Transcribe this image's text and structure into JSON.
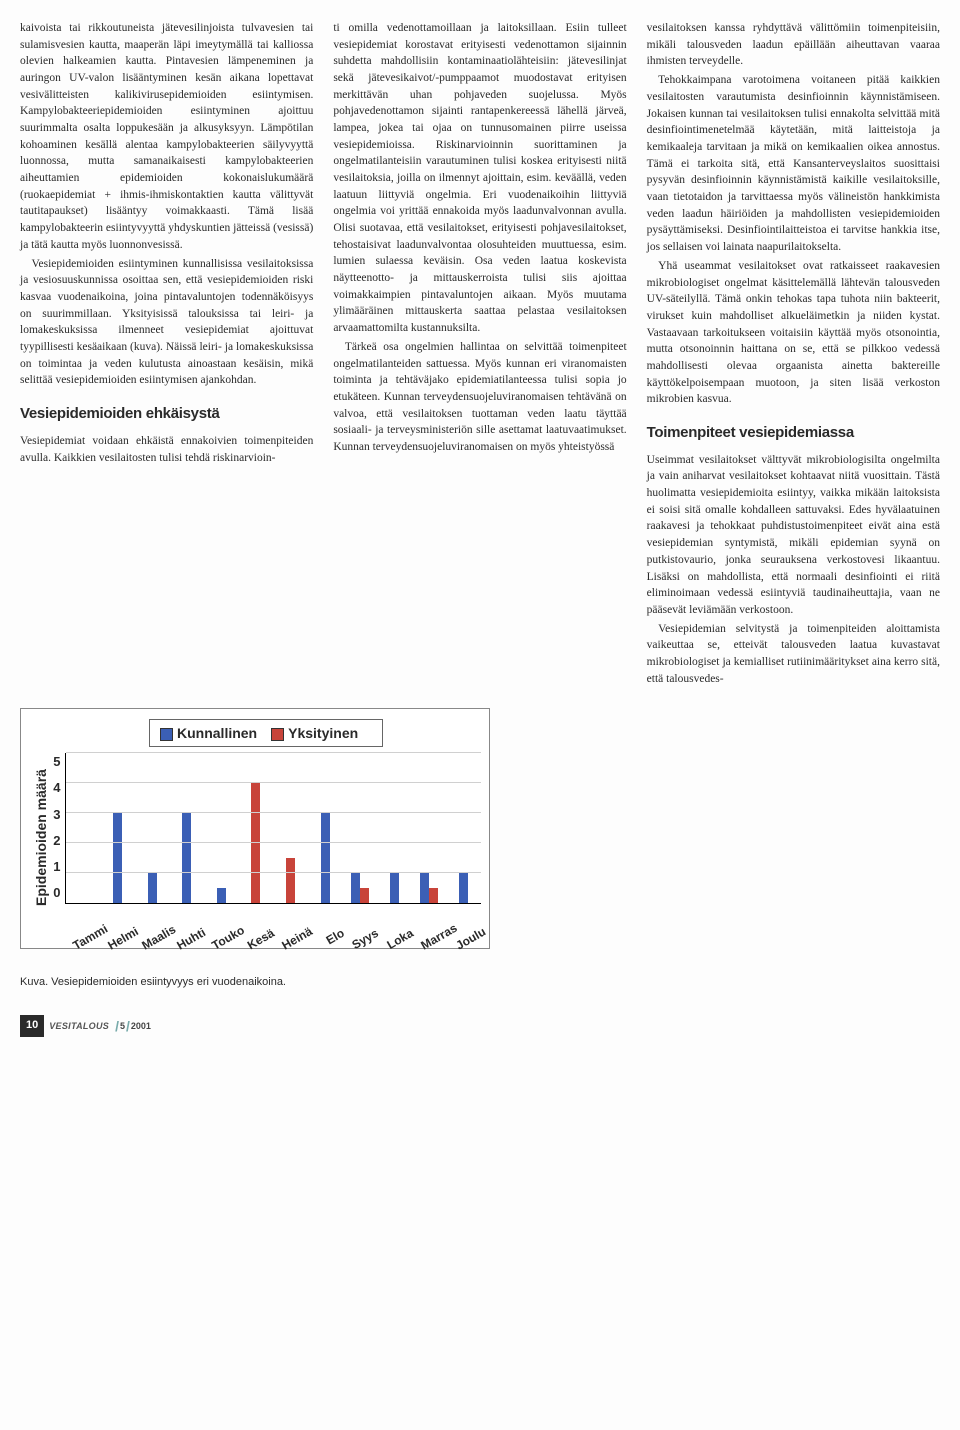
{
  "col1": {
    "p1": "kaivoista tai rikkoutuneista jätevesilinjoista tulvavesien tai sulamisvesien kautta, maaperän läpi imeytymällä tai kalliossa olevien halkeamien kautta. Pintavesien lämpeneminen ja auringon UV-valon lisääntyminen kesän aikana lopettavat vesivälitteisten kalikivirusepidemioiden esiintymisen. Kampylobakteeriepidemioiden esiintyminen ajoittuu suurimmalta osalta loppukesään ja alkusyksyyn. Lämpötilan kohoaminen kesällä alentaa kampylobakteerien säilyvyyttä luonnossa, mutta samanaikaisesti kampylobakteerien aiheuttamien epidemioiden kokonaislukumäärä (ruokaepidemiat + ihmis-ihmiskontaktien kautta välittyvät tautitapaukset) lisääntyy voimakkaasti. Tämä lisää kampylobakteerin esiintyvyyttä yhdyskuntien jätteissä (vesissä) ja tätä kautta myös luonnonvesissä.",
    "p2": "Vesiepidemioiden esiintyminen kunnallisissa vesilaitoksissa ja vesiosuuskunnissa osoittaa sen, että vesiepidemioiden riski kasvaa vuodenaikoina, joina pintavaluntojen todennäköisyys on suurimmillaan. Yksityisissä talouksissa tai leiri- ja lomakeskuksissa ilmenneet vesiepidemiat ajoittuvat tyypillisesti kesäaikaan (kuva). Näissä leiri- ja lomakeskuksissa on toimintaa ja veden kulutusta ainoastaan kesäisin, mikä selittää vesiepidemioiden esiintymisen ajankohdan.",
    "h1": "Vesiepidemioiden ehkäisystä",
    "p3": "Vesiepidemiat voidaan ehkäistä ennakoivien toimenpiteiden avulla. Kaikkien vesilaitosten tulisi tehdä riskinarvioin-"
  },
  "col2": {
    "p1": "ti omilla vedenottamoillaan ja laitoksillaan. Esiin tulleet vesiepidemiat korostavat erityisesti vedenottamon sijainnin suhdetta mahdollisiin kontaminaatiolähteisiin: jätevesilinjat sekä jätevesikaivot/-pumppaamot muodostavat erityisen merkittävän uhan pohjaveden suojelussa. Myös pohjavedenottamon sijainti rantapenkereessä lähellä järveä, lampea, jokea tai ojaa on tunnusomainen piirre useissa vesiepidemioissa. Riskinarvioinnin suorittaminen ja ongelmatilanteisiin varautuminen tulisi koskea erityisesti niitä vesilaitoksia, joilla on ilmennyt ajoittain, esim. keväällä, veden laatuun liittyviä ongelmia. Eri vuodenaikoihin liittyviä ongelmia voi yrittää ennakoida myös laadunvalvonnan avulla. Olisi suotavaa, että vesilaitokset, erityisesti pohjavesilaitokset, tehostaisivat laadunvalvontaa olosuhteiden muuttuessa, esim. lumien sulaessa keväisin. Osa veden laatua koskevista näytteenotto- ja mittauskerroista tulisi siis ajoittaa voimakkaimpien pintavaluntojen aikaan. Myös muutama ylimääräinen mittauskerta saattaa pelastaa vesilaitoksen arvaamattomilta kustannuksilta.",
    "p2": "Tärkeä osa ongelmien hallintaa on selvittää toimenpiteet ongelmatilanteiden sattuessa. Myös kunnan eri viranomaisten toiminta ja tehtäväjako epidemiatilanteessa tulisi sopia jo etukäteen. Kunnan terveydensuojeluviranomaisen tehtävänä on valvoa, että vesilaitoksen tuottaman veden laatu täyttää sosiaali- ja terveysministeriön sille asettamat laatuvaatimukset. Kunnan terveydensuojeluviranomaisen on myös yhteistyössä"
  },
  "col3": {
    "p1": "vesilaitoksen kanssa ryhdyttävä välittömiin toimenpiteisiin, mikäli talousveden laadun epäillään aiheuttavan vaaraa ihmisten terveydelle.",
    "p2": "Tehokkaimpana varotoimena voitaneen pitää kaikkien vesilaitosten varautumista desinfioinnin käynnistämiseen. Jokaisen kunnan tai vesilaitoksen tulisi ennakolta selvittää mitä desinfiointimenetelmää käytetään, mitä laitteistoja ja kemikaaleja tarvitaan ja mikä on kemikaalien oikea annostus. Tämä ei tarkoita sitä, että Kansanterveyslaitos suosittaisi pysyvän desinfioinnin käynnistämistä kaikille vesilaitoksille, vaan tietotaidon ja tarvittaessa myös välineistön hankkimista veden laadun häiriöiden ja mahdollisten vesiepidemioiden pysäyttämiseksi. Desinfiointilaitteistoa ei tarvitse hankkia itse, jos sellaisen voi lainata naapurilaitokselta.",
    "p3": "Yhä useammat vesilaitokset ovat ratkaisseet raakavesien mikrobiologiset ongelmat käsittelemällä lähtevän talousveden UV-säteilyllä. Tämä onkin tehokas tapa tuhota niin bakteerit, virukset kuin mahdolliset alkueläimetkin ja niiden kystat. Vastaavaan tarkoitukseen voitaisiin käyttää myös otsonointia, mutta otsonoinnin haittana on se, että se pilkkoo vedessä mahdollisesti olevaa orgaanista ainetta baktereille käyttökelpoisempaan muotoon, ja siten lisää verkoston mikrobien kasvua.",
    "h1": "Toimenpiteet vesiepidemiassa",
    "p4": "Useimmat vesilaitokset välttyvät mikrobiologisilta ongelmilta ja vain aniharvat vesilaitokset kohtaavat niitä vuosittain. Tästä huolimatta vesiepidemioita esiintyy, vaikka mikään laitoksista ei soisi sitä omalle kohdalleen sattuvaksi. Edes hyvälaatuinen raakavesi ja tehokkaat puhdistustoimenpiteet eivät aina estä vesiepidemian syntymistä, mikäli epidemian syynä on putkistovaurio, jonka seurauksena verkostovesi likaantuu. Lisäksi on mahdollista, että normaali desinfiointi ei riitä eliminoimaan vedessä esiintyviä taudinaiheuttajia, vaan ne pääsevät leviämään verkostoon.",
    "p5": "Vesiepidemian selvitystä ja toimenpiteiden aloittamista vaikeuttaa se, etteivät talousveden laatua kuvastavat mikrobiologiset ja kemialliset rutiinimääritykset aina kerro sitä, että talousvedes-"
  },
  "chart": {
    "legend_items": [
      {
        "label": "Kunnallinen",
        "color": "#3b5fb5"
      },
      {
        "label": "Yksityinen",
        "color": "#c8443a"
      }
    ],
    "ylabel": "Epidemioiden määrä",
    "ymax": 5,
    "yticks": [
      5,
      4,
      3,
      2,
      1,
      0
    ],
    "months": [
      "Tammi",
      "Helmi",
      "Maalis",
      "Huhti",
      "Touko",
      "Kesä",
      "Heinä",
      "Elo",
      "Syys",
      "Loka",
      "Marras",
      "Joulu"
    ],
    "series_kunnallinen": [
      0,
      3,
      1,
      3,
      0.5,
      0,
      0,
      3,
      1,
      1,
      1,
      1
    ],
    "series_yksityinen": [
      0,
      0,
      0,
      0,
      0,
      4,
      1.5,
      0,
      0.5,
      0,
      0.5,
      0
    ],
    "colors": {
      "kunnallinen": "#3b5fb5",
      "yksityinen": "#c8443a"
    },
    "grid_color": "#d0d0d0",
    "caption": "Kuva. Vesiepidemioiden esiintyvyys eri vuodenaikoina."
  },
  "footer": {
    "page": "10",
    "magazine": "VESITALOUS",
    "issue": "5",
    "year": "2001"
  }
}
